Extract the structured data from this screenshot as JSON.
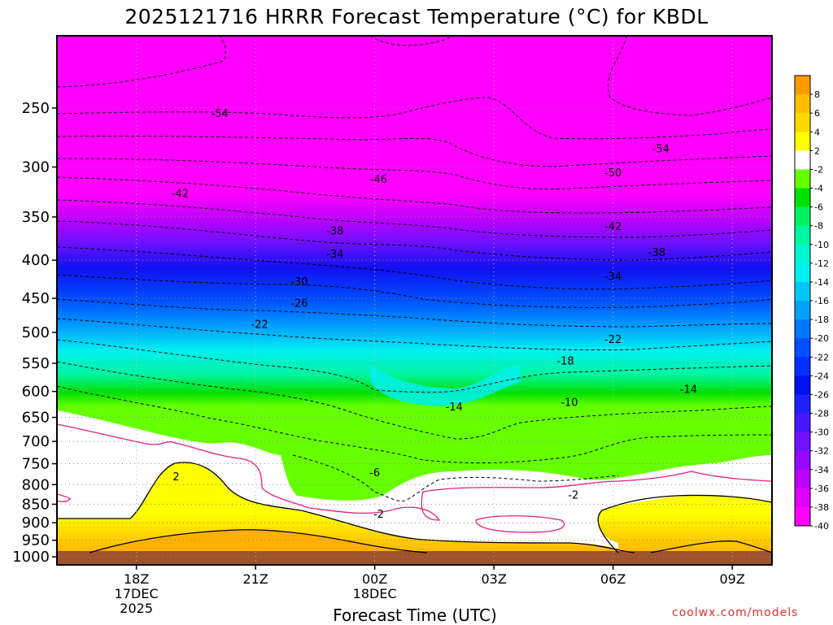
{
  "header": {
    "title": "2025121716 HRRR Forecast Temperature (°C) for KBDL"
  },
  "footer": {
    "xlabel": "Forecast Time (UTC)",
    "credit": "coolwx.com/models"
  },
  "colors": {
    "land": "#a0522d",
    "warm": [
      "#ffff00",
      "#ffd700",
      "#ffb000",
      "#ff8c00"
    ],
    "zero_band": "#ffffff",
    "freezing_line": "#e0207a"
  },
  "colorbar": {
    "labels": [
      "8",
      "6",
      "4",
      "2",
      "-2",
      "-4",
      "-6",
      "-8",
      "-10",
      "-12",
      "-14",
      "-16",
      "-18",
      "-20",
      "-22",
      "-24",
      "-26",
      "-28",
      "-30",
      "-32",
      "-34",
      "-36",
      "-38",
      "-40"
    ],
    "colors": [
      "#ff9a00",
      "#ffbf00",
      "#ffd800",
      "#ffff00",
      "#ffffff",
      "#66ff00",
      "#00e000",
      "#00f060",
      "#00f5a0",
      "#00f5d0",
      "#00f0f0",
      "#00c8ff",
      "#00a0ff",
      "#0078ff",
      "#0050ff",
      "#0030ff",
      "#0010f0",
      "#2020ff",
      "#4818ff",
      "#7010ff",
      "#9808ff",
      "#c000ff",
      "#e000ff",
      "#ff00ff"
    ]
  },
  "chart_data": {
    "type": "heatmap",
    "title": "2025121716 HRRR Forecast Temperature (°C) for KBDL",
    "xlabel": "Forecast Time (UTC)",
    "ylabel": "",
    "x_ticks": [
      {
        "hour": 2,
        "label": "18Z",
        "sub": [
          "17DEC",
          "2025"
        ]
      },
      {
        "hour": 5,
        "label": "21Z",
        "sub": []
      },
      {
        "hour": 8,
        "label": "00Z",
        "sub": [
          "18DEC"
        ]
      },
      {
        "hour": 11,
        "label": "03Z",
        "sub": []
      },
      {
        "hour": 14,
        "label": "06Z",
        "sub": []
      },
      {
        "hour": 17,
        "label": "09Z",
        "sub": []
      }
    ],
    "xlim_hours": [
      0,
      18
    ],
    "y_ticks": [
      250,
      300,
      350,
      400,
      450,
      500,
      550,
      600,
      650,
      700,
      750,
      800,
      850,
      900,
      950,
      1000
    ],
    "yscale": "log",
    "ylim_hPa": [
      200,
      1025
    ],
    "contour_labels": [
      {
        "value": "-54",
        "hour": 4.1,
        "p": 254
      },
      {
        "value": "-54",
        "hour": 15.2,
        "p": 283
      },
      {
        "value": "-50",
        "hour": 14.0,
        "p": 305
      },
      {
        "value": "-46",
        "hour": 8.1,
        "p": 311
      },
      {
        "value": "-42",
        "hour": 3.1,
        "p": 325
      },
      {
        "value": "-42",
        "hour": 14.0,
        "p": 360
      },
      {
        "value": "-38",
        "hour": 7.0,
        "p": 365
      },
      {
        "value": "-38",
        "hour": 15.1,
        "p": 390
      },
      {
        "value": "-34",
        "hour": 7.0,
        "p": 392
      },
      {
        "value": "-34",
        "hour": 14.0,
        "p": 420
      },
      {
        "value": "-30",
        "hour": 6.1,
        "p": 427
      },
      {
        "value": "-26",
        "hour": 6.1,
        "p": 456
      },
      {
        "value": "-22",
        "hour": 5.1,
        "p": 487
      },
      {
        "value": "-22",
        "hour": 14.0,
        "p": 510
      },
      {
        "value": "-18",
        "hour": 12.8,
        "p": 545
      },
      {
        "value": "-14",
        "hour": 10.0,
        "p": 628
      },
      {
        "value": "-14",
        "hour": 15.9,
        "p": 595
      },
      {
        "value": "-10",
        "hour": 12.9,
        "p": 620
      },
      {
        "value": "-6",
        "hour": 8.0,
        "p": 770
      },
      {
        "value": "-2",
        "hour": 8.1,
        "p": 875
      },
      {
        "value": "-2",
        "hour": 13.0,
        "p": 825
      },
      {
        "value": "2",
        "hour": 3.0,
        "p": 780
      }
    ],
    "grid": true,
    "legend": "colorbar-right"
  }
}
